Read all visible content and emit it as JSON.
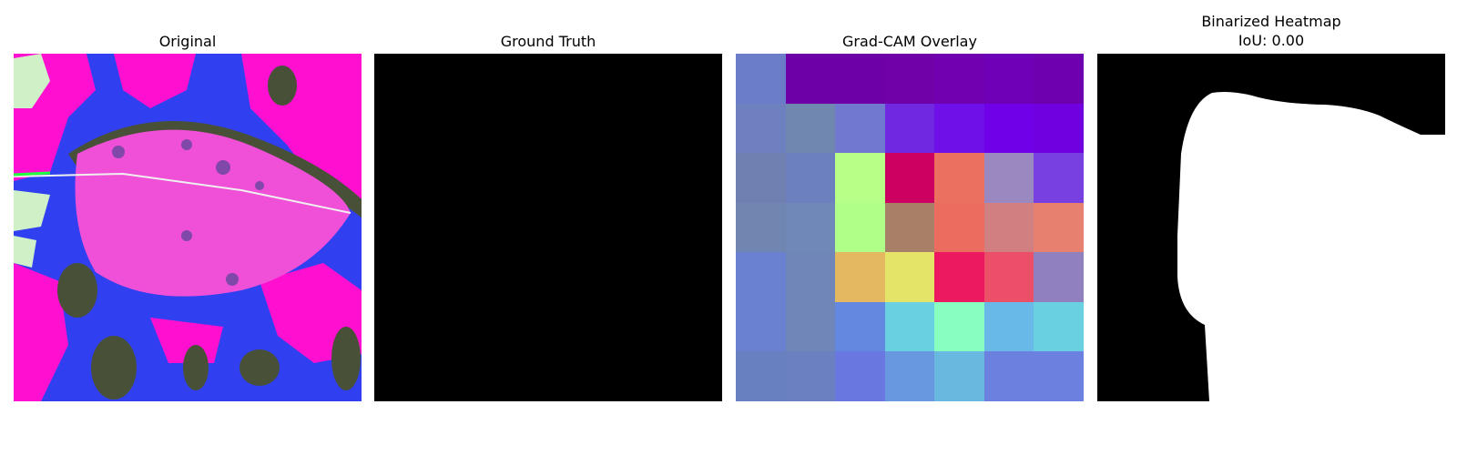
{
  "panels": [
    {
      "title": "Original"
    },
    {
      "title": "Ground Truth"
    },
    {
      "title": "Grad-CAM Overlay"
    },
    {
      "title": "Binarized Heatmap",
      "subtitle": "IoU: 0.00"
    }
  ],
  "gradcam_colors": [
    [
      "#6b7dc8",
      "#6e00a8",
      "#6e00a8",
      "#7000a8",
      "#7000b0",
      "#6e00b8",
      "#6e00b0"
    ],
    [
      "#6e80c0",
      "#7088b0",
      "#7078d0",
      "#7028e0",
      "#7010e8",
      "#7000e8",
      "#7000e0"
    ],
    [
      "#7080b0",
      "#6c80c0",
      "#b8ff88",
      "#cc0060",
      "#ec7060",
      "#9a88c0",
      "#7840e0"
    ],
    [
      "#7085b0",
      "#7088b8",
      "#b0ff88",
      "#a88068",
      "#ec6c60",
      "#d08080",
      "#e88070"
    ],
    [
      "#6a80d0",
      "#7085b8",
      "#e4b860",
      "#e4e468",
      "#ec1860",
      "#ec5068",
      "#9080c0"
    ],
    [
      "#6a80d0",
      "#7085b8",
      "#6488e0",
      "#68d0e0",
      "#88ffc0",
      "#68b8e8",
      "#68d0e0"
    ],
    [
      "#6880c0",
      "#6a80c0",
      "#6878e0",
      "#6898e0",
      "#68b8e0",
      "#6c80e0",
      "#6c80e0"
    ]
  ],
  "colors": {
    "magenta": "#ff10d0",
    "blue": "#3040f0",
    "dark_olive": "#485038",
    "pale_green": "#d0f0c8",
    "leaf": "#f050d8"
  }
}
